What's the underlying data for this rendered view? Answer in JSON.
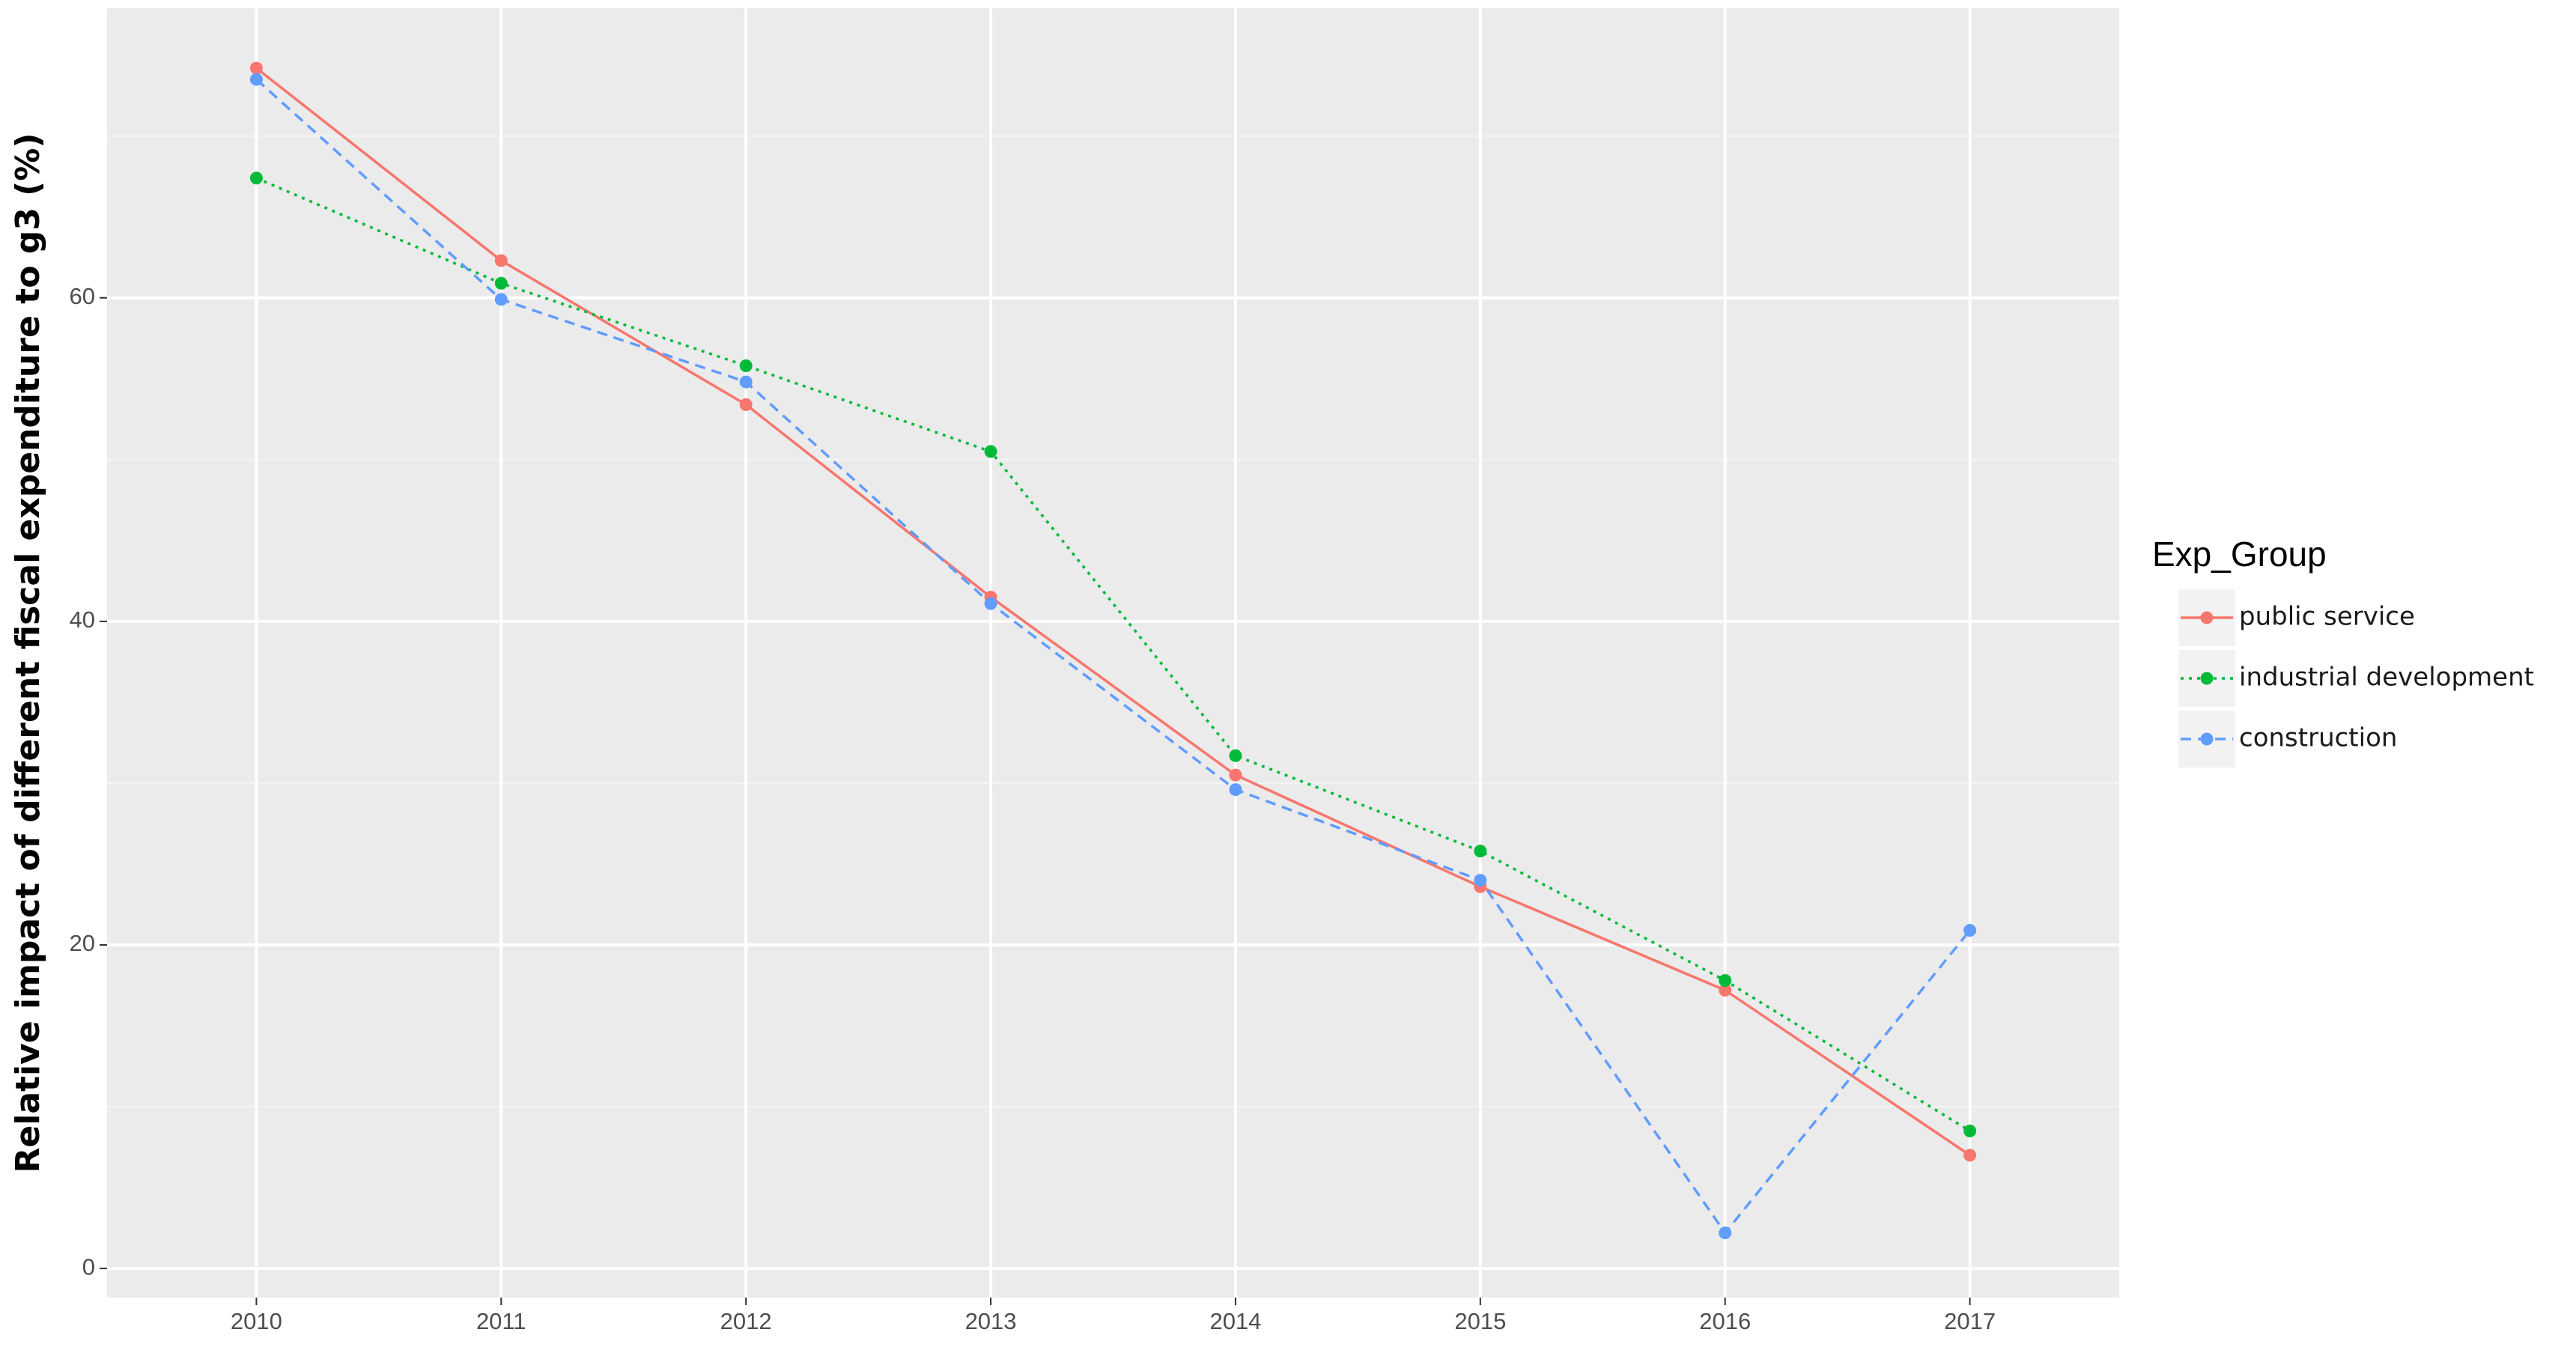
{
  "chart_data": {
    "type": "line",
    "y_label": "Relative impact of different fiscal expenditure to g3 (%)",
    "legend_title": "Exp_Group",
    "x": [
      2010,
      2011,
      2012,
      2013,
      2014,
      2015,
      2016,
      2017
    ],
    "xlim": [
      2009.39,
      2017.61
    ],
    "xticks": [
      2010,
      2011,
      2012,
      2013,
      2014,
      2015,
      2016,
      2017
    ],
    "ylim": [
      -1.8,
      77.9
    ],
    "yticks": [
      0,
      20,
      40,
      60
    ],
    "grid": true,
    "legend": "right",
    "series": [
      {
        "name": "public service",
        "color": "#F8766D",
        "linetype": "solid",
        "values": [
          74.2,
          62.3,
          53.4,
          41.5,
          30.5,
          23.6,
          17.2,
          7.0
        ]
      },
      {
        "name": "industrial development",
        "color": "#00BA38",
        "linetype": "dotted",
        "values": [
          67.4,
          60.9,
          55.8,
          50.5,
          31.7,
          25.8,
          17.8,
          8.5
        ]
      },
      {
        "name": "construction",
        "color": "#619CFF",
        "linetype": "dashed",
        "values": [
          73.5,
          59.9,
          54.8,
          41.1,
          29.6,
          24.0,
          2.2,
          20.9
        ]
      }
    ]
  }
}
